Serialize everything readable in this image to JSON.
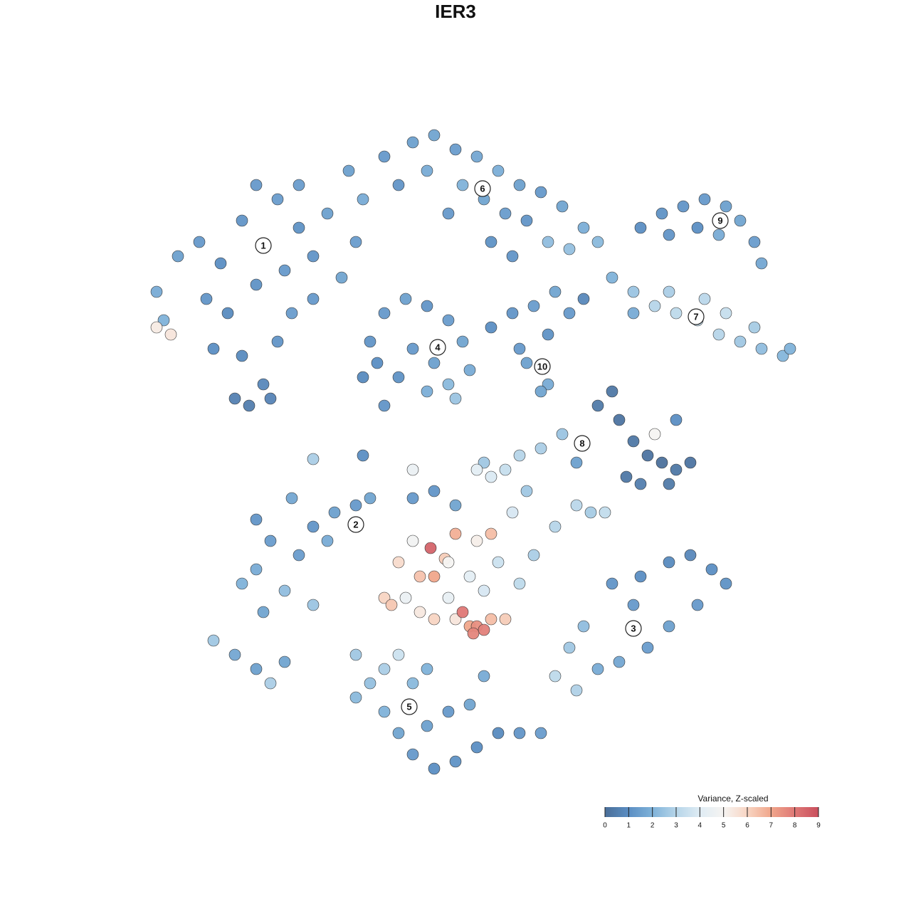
{
  "chart_data": {
    "type": "scatter",
    "title": "IER3",
    "x": [
      -27,
      -30,
      -25,
      -22,
      -33,
      -36,
      -39,
      -42,
      -41,
      -42,
      -40,
      -35,
      -32,
      -28,
      -24,
      -20,
      -18,
      -22,
      -28,
      -30,
      -27,
      -31,
      -29,
      -26,
      -34,
      -25,
      -23,
      -20,
      -16,
      -14,
      -13,
      -15,
      -10,
      -6,
      -3,
      0,
      3,
      6,
      9,
      12,
      15,
      18,
      20,
      -8,
      -4,
      1,
      4,
      7,
      10,
      13,
      16,
      -1,
      5,
      8,
      26,
      29,
      32,
      35,
      38,
      40,
      42,
      43,
      30,
      34,
      37,
      22,
      25,
      28,
      31,
      34,
      37,
      40,
      43,
      46,
      47,
      30,
      35,
      38,
      42,
      25,
      -12,
      -10,
      -7,
      -4,
      -1,
      1,
      2,
      -1,
      -4,
      -8,
      -11,
      -13,
      -6,
      -3,
      0,
      -10,
      5,
      8,
      11,
      14,
      16,
      13,
      10,
      13,
      12,
      9,
      18,
      20,
      22,
      23,
      25,
      27,
      29,
      31,
      33,
      30,
      26,
      24,
      28,
      31,
      15,
      12,
      9,
      7,
      4,
      17,
      -28,
      -30,
      -27,
      -24,
      -22,
      -20,
      -17,
      -14,
      -12,
      -18,
      -26,
      -23,
      -28,
      -34,
      -31,
      -28,
      -26,
      -24,
      -20,
      22,
      26,
      30,
      33,
      36,
      38,
      34,
      30,
      27,
      23,
      20,
      25,
      18,
      16,
      14,
      17,
      -6,
      -1.5,
      -3.5,
      0,
      3,
      5,
      -8,
      -5,
      -3,
      -1,
      2,
      4,
      -10,
      -9,
      -7,
      -5,
      -3,
      0,
      1,
      2,
      3,
      4,
      5,
      7,
      2.5,
      -1,
      6,
      9,
      11,
      14,
      17,
      19,
      21,
      8,
      10,
      5,
      0,
      -3,
      -6,
      3,
      -6,
      -14,
      -12,
      -10,
      -8,
      -6,
      -3,
      0,
      3,
      6,
      9,
      12,
      -4,
      -1,
      2,
      4,
      -6,
      -10,
      -14,
      -8,
      -4,
      -20,
      -13
    ],
    "y": [
      29.5,
      33,
      36,
      32,
      27,
      30,
      28,
      23,
      19,
      18,
      17,
      22,
      20,
      24,
      26,
      28,
      34,
      38,
      38,
      14,
      10,
      8,
      7,
      8,
      15,
      16,
      20,
      22,
      25,
      30,
      36,
      40,
      42,
      44,
      45,
      43,
      42,
      40,
      38,
      37,
      35,
      32,
      30,
      38,
      40,
      38,
      36,
      34,
      33,
      30,
      29,
      34,
      30,
      28,
      32,
      34,
      35,
      36,
      35,
      33,
      30,
      27,
      31,
      32,
      31,
      25,
      23,
      21,
      20,
      19,
      17,
      16,
      15,
      14,
      15,
      23,
      22,
      20,
      18,
      20,
      16,
      20,
      22,
      21,
      19,
      16,
      12,
      10,
      9,
      11,
      13,
      11,
      15,
      13,
      8,
      7,
      18,
      20,
      21,
      23,
      20,
      17,
      13,
      10,
      9,
      15,
      22,
      7,
      9,
      5,
      2,
      0,
      -1,
      -2,
      -1,
      -4,
      -4,
      -3,
      3,
      5,
      3,
      1,
      0,
      -2,
      -1,
      -1,
      -16,
      -18,
      -22,
      -19,
      -14,
      -10,
      -8,
      -7,
      -6,
      -12,
      -12,
      -6,
      -9,
      -26,
      -28,
      -30,
      -32,
      -29,
      -21,
      -18,
      -17,
      -15,
      -14,
      -16,
      -18,
      -21,
      -24,
      -27,
      -29,
      -30,
      -21,
      -24,
      -27,
      -31,
      -33,
      -12,
      -14.5,
      -13,
      -11,
      -12,
      -11,
      -15,
      -17,
      -17,
      -15,
      -17,
      -19,
      -20,
      -21,
      -20,
      -22,
      -23,
      -23,
      -22,
      -24,
      -24,
      -24.5,
      -23,
      -23,
      -25,
      -20,
      -15,
      -18,
      -14,
      -10,
      -7,
      -8,
      -8,
      -8,
      -5,
      -3,
      -7,
      -5,
      -6,
      -2,
      -2,
      -28,
      -32,
      -36,
      -39,
      -42,
      -44,
      -43,
      -41,
      -39,
      -39,
      -39,
      -38,
      -36,
      -35,
      -31,
      -32,
      -30,
      -34,
      -28,
      -30,
      -0.5,
      0
    ],
    "values": [
      1.3,
      1.2,
      1.4,
      1.1,
      1.0,
      1.3,
      1.5,
      1.8,
      2.0,
      5.3,
      5.5,
      1.2,
      0.9,
      1.1,
      1.3,
      1.2,
      1.5,
      1.4,
      1.3,
      0.9,
      0.8,
      0.6,
      0.5,
      0.7,
      1.0,
      1.2,
      1.4,
      1.3,
      1.6,
      1.4,
      1.8,
      1.5,
      1.3,
      1.5,
      1.6,
      1.4,
      1.7,
      1.9,
      1.5,
      1.3,
      1.6,
      1.9,
      2.2,
      1.2,
      1.8,
      2.0,
      1.6,
      1.4,
      1.2,
      2.3,
      2.4,
      1.3,
      1.1,
      1.2,
      1.0,
      1.1,
      1.2,
      1.3,
      1.5,
      1.6,
      1.4,
      1.7,
      1.2,
      1.0,
      1.8,
      2.0,
      2.5,
      3.0,
      3.2,
      3.3,
      3.0,
      2.6,
      2.3,
      2.1,
      2.0,
      2.8,
      3.1,
      3.4,
      2.7,
      1.8,
      1.2,
      1.3,
      1.5,
      1.2,
      1.4,
      1.6,
      1.8,
      2.2,
      1.9,
      1.1,
      1.0,
      0.9,
      1.3,
      1.5,
      2.5,
      1.2,
      1.0,
      1.2,
      1.4,
      1.6,
      1.3,
      1.1,
      1.5,
      1.8,
      1.6,
      1.3,
      0.8,
      0.4,
      0.3,
      0.2,
      0.3,
      0.2,
      0.1,
      0.3,
      0.2,
      0.4,
      0.5,
      0.3,
      5.0,
      1.0,
      2.5,
      2.8,
      3.0,
      3.4,
      2.6,
      1.5,
      1.8,
      2.0,
      1.6,
      2.3,
      1.4,
      1.2,
      1.5,
      1.3,
      1.6,
      1.8,
      1.4,
      1.7,
      1.2,
      2.6,
      1.7,
      1.5,
      2.8,
      1.6,
      2.5,
      1.2,
      1.0,
      0.9,
      0.8,
      1.0,
      1.1,
      1.3,
      1.5,
      1.4,
      1.7,
      1.8,
      1.3,
      2.3,
      2.6,
      3.2,
      2.9,
      4.8,
      6.2,
      8.5,
      6.8,
      5.2,
      6.5,
      5.8,
      6.4,
      7.0,
      5.0,
      4.2,
      3.8,
      6.0,
      6.3,
      4.5,
      5.4,
      6.0,
      5.5,
      8.0,
      7.0,
      7.5,
      7.8,
      6.5,
      6.2,
      7.7,
      4.4,
      3.5,
      3.2,
      2.8,
      3.0,
      3.1,
      2.7,
      3.3,
      3.8,
      2.6,
      3.9,
      1.6,
      1.2,
      1.3,
      4.2,
      4.5,
      2.6,
      2.4,
      2.0,
      1.6,
      1.3,
      1.0,
      1.1,
      1.0,
      0.9,
      1.2,
      1.4,
      1.5,
      1.3,
      1.6,
      1.8,
      2.2,
      2.8,
      2.2,
      3.5,
      2.0,
      2.8,
      1.0
    ],
    "annotations": [
      {
        "label": "1",
        "x": -27,
        "y": 29.5
      },
      {
        "label": "2",
        "x": -14,
        "y": -9.7
      },
      {
        "label": "3",
        "x": 25,
        "y": -24.3
      },
      {
        "label": "4",
        "x": -2.5,
        "y": 15.2
      },
      {
        "label": "5",
        "x": -6.5,
        "y": -35.3
      },
      {
        "label": "6",
        "x": 3.8,
        "y": 37.5
      },
      {
        "label": "7",
        "x": 33.8,
        "y": 19.5
      },
      {
        "label": "8",
        "x": 17.8,
        "y": 1.7
      },
      {
        "label": "9",
        "x": 37.2,
        "y": 33
      },
      {
        "label": "10",
        "x": 12.2,
        "y": 12.5
      }
    ],
    "colorbar": {
      "title": "Variance, Z-scaled",
      "ticks": [
        0,
        1,
        2,
        3,
        4,
        5,
        6,
        7,
        8,
        9
      ],
      "colors": [
        "#4a6e98",
        "#5b8ec3",
        "#7fb2d9",
        "#b6d5e9",
        "#dfecf4",
        "#f6f4f2",
        "#f8d5c3",
        "#f0a68b",
        "#df7876",
        "#c94f5d"
      ]
    }
  }
}
